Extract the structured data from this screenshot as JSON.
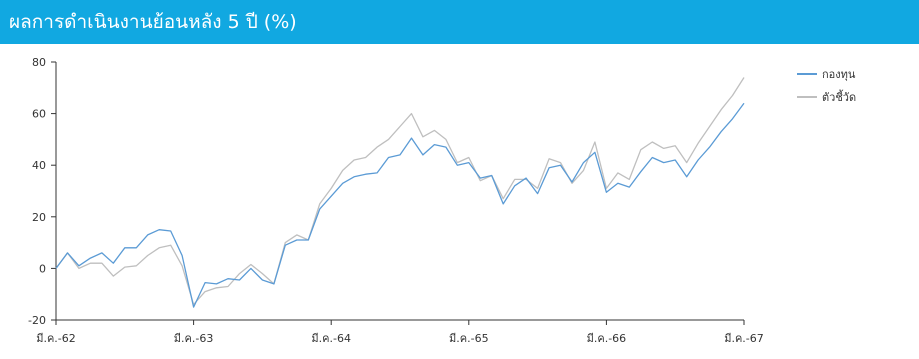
{
  "header": {
    "title": "ผลการดำเนินงานย้อนหลัง 5 ปี (%)"
  },
  "colors": {
    "header_bg": "#11a8e1",
    "fund": "#5b9bd5",
    "benchmark": "#bfbfbf"
  },
  "chart_data": {
    "type": "line",
    "title": "ผลการดำเนินงานย้อนหลัง 5 ปี (%)",
    "xlabel": "",
    "ylabel": "",
    "ylim": [
      -20,
      80
    ],
    "yticks": [
      -20,
      0,
      20,
      40,
      60,
      80
    ],
    "xtick_labels": [
      "มี.ค.-62",
      "มี.ค.-63",
      "มี.ค.-64",
      "มี.ค.-65",
      "มี.ค.-66",
      "มี.ค.-67"
    ],
    "x_months": [
      0,
      1,
      2,
      3,
      4,
      5,
      6,
      7,
      8,
      9,
      10,
      11,
      12,
      13,
      14,
      15,
      16,
      17,
      18,
      19,
      20,
      21,
      22,
      23,
      24,
      25,
      26,
      27,
      28,
      29,
      30,
      31,
      32,
      33,
      34,
      35,
      36,
      37,
      38,
      39,
      40,
      41,
      42,
      43,
      44,
      45,
      46,
      47,
      48,
      49,
      50,
      51,
      52,
      53,
      54,
      55,
      56,
      57,
      58,
      59,
      60
    ],
    "grid": false,
    "legend_position": "right",
    "series": [
      {
        "name": "กองทุน",
        "color": "#5b9bd5",
        "values": [
          0,
          6,
          1,
          4,
          6,
          2,
          8,
          8,
          13,
          15,
          14.5,
          5,
          -15,
          -5.5,
          -6,
          -4,
          -4.5,
          0,
          -4.5,
          -6,
          9,
          11,
          11,
          23,
          28,
          33,
          35.5,
          36.5,
          37,
          43,
          44,
          50.5,
          44,
          48,
          47,
          40,
          41,
          35,
          36,
          25,
          32,
          35,
          29,
          39,
          40,
          33.5,
          41,
          45,
          29.5,
          33,
          31.5,
          37.5,
          43,
          41,
          42,
          35.5,
          42,
          47,
          53,
          58,
          64
        ]
      },
      {
        "name": "ตัวชี้วัด",
        "color": "#bfbfbf",
        "values": [
          0,
          6,
          0,
          2,
          2,
          -3,
          0.5,
          1,
          5,
          8,
          9,
          1,
          -14,
          -9,
          -7.5,
          -7,
          -2,
          1.5,
          -2,
          -6,
          10,
          13,
          11,
          25,
          31,
          38,
          42,
          43,
          47,
          50,
          55,
          60,
          51,
          53.5,
          50,
          41,
          43,
          34,
          36,
          27,
          34.5,
          34.5,
          31,
          42.5,
          41,
          33,
          38,
          49,
          31,
          37,
          34.5,
          46,
          49,
          46.5,
          47.5,
          41,
          48.5,
          55,
          61.5,
          67,
          74
        ]
      }
    ]
  }
}
